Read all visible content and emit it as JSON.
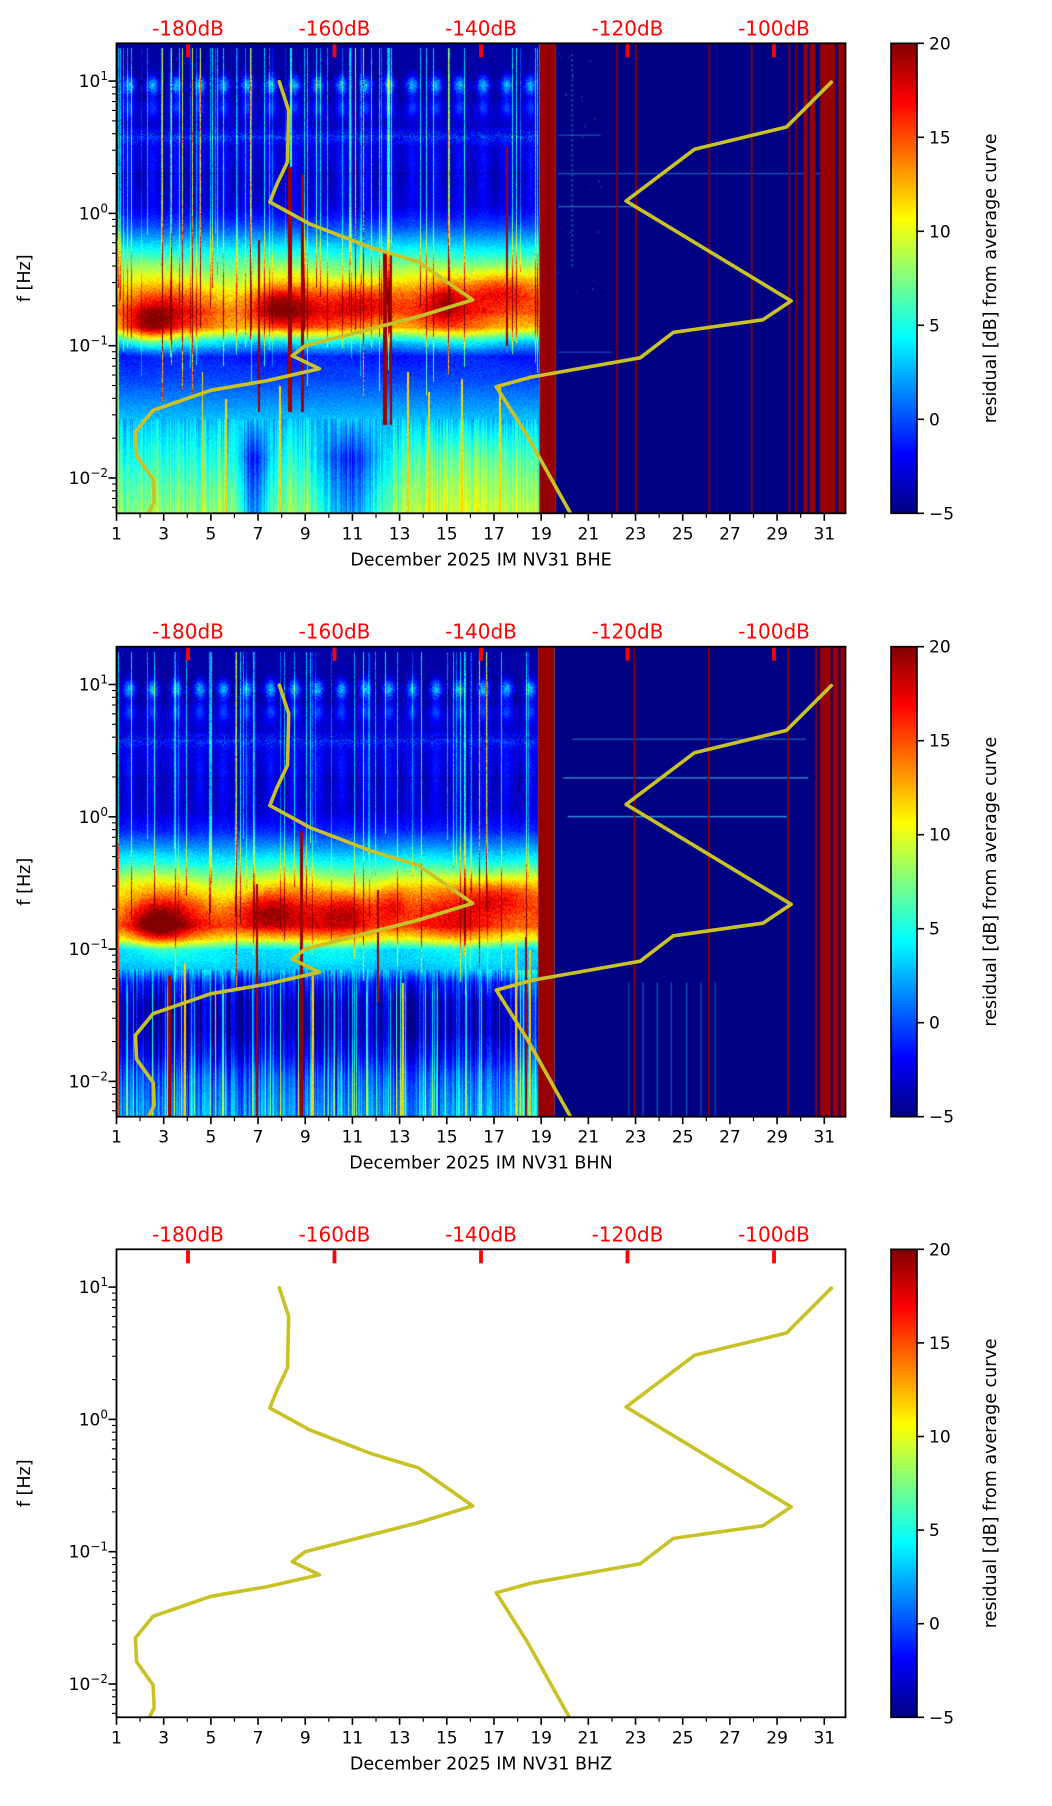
{
  "chart_data": {
    "type": "heatmap",
    "description": "Three stacked day-vs-frequency residual spectrograms for station IM NV31 (channels BHE, BHN, BHZ) with Peterson NLNM/NHNM noise model curves plotted against a red top dB axis",
    "x_axis": {
      "range_days": [
        1,
        31.9
      ],
      "tick_labels": [
        "1",
        "3",
        "5",
        "7",
        "9",
        "11",
        "13",
        "15",
        "17",
        "19",
        "21",
        "23",
        "25",
        "27",
        "29",
        "31"
      ],
      "tick_days": [
        1,
        3,
        5,
        7,
        9,
        11,
        13,
        15,
        17,
        19,
        21,
        23,
        25,
        27,
        29,
        31
      ],
      "minor_days": [
        2,
        4,
        6,
        8,
        10,
        12,
        14,
        16,
        18,
        20,
        22,
        24,
        26,
        28,
        30
      ]
    },
    "y_axis": {
      "label": "f [Hz]",
      "range_hz": [
        0.0054,
        19.3
      ],
      "decade_exponents": [
        1,
        0,
        -1,
        -2
      ],
      "decade_labels": [
        {
          "base": "10",
          "exp": "1"
        },
        {
          "base": "10",
          "exp": "0"
        },
        {
          "base": "10",
          "exp": "−1"
        },
        {
          "base": "10",
          "exp": "−2"
        }
      ]
    },
    "top_axis": {
      "color": "#ff0000",
      "ticks": [
        {
          "label": "-180dB",
          "day": 4.03
        },
        {
          "label": "-160dB",
          "day": 10.24
        },
        {
          "label": "-140dB",
          "day": 16.45
        },
        {
          "label": "-120dB",
          "day": 22.66
        },
        {
          "label": "-100dB",
          "day": 28.87
        }
      ]
    },
    "colorbar": {
      "label": "residual [dB] from average curve",
      "colormap": "jet",
      "range": [
        -5,
        20
      ],
      "tick_values": [
        20,
        15,
        10,
        5,
        0,
        -5
      ],
      "tick_labels": [
        "20",
        "15",
        "10",
        "5",
        "0",
        "−5"
      ]
    },
    "curves": {
      "color": "#c9c226",
      "width": 3.6,
      "nlnm_day_freq": [
        [
          2.3,
          0.0052
        ],
        [
          2.6,
          0.0066
        ],
        [
          2.55,
          0.0098
        ],
        [
          1.85,
          0.0147
        ],
        [
          1.8,
          0.0223
        ],
        [
          2.55,
          0.0325
        ],
        [
          5.0,
          0.046
        ],
        [
          7.4,
          0.0545
        ],
        [
          9.6,
          0.067
        ],
        [
          8.45,
          0.084
        ],
        [
          9.0,
          0.1
        ],
        [
          13.8,
          0.166
        ],
        [
          16.1,
          0.222
        ],
        [
          13.8,
          0.43
        ],
        [
          11.8,
          0.55
        ],
        [
          9.2,
          0.83
        ],
        [
          7.5,
          1.22
        ],
        [
          7.8,
          1.66
        ],
        [
          8.25,
          2.45
        ],
        [
          8.3,
          6.0
        ],
        [
          7.9,
          9.9
        ]
      ],
      "nhnm_day_freq": [
        [
          20.3,
          0.0052
        ],
        [
          18.4,
          0.021
        ],
        [
          17.1,
          0.049
        ],
        [
          18.6,
          0.058
        ],
        [
          23.2,
          0.081
        ],
        [
          24.6,
          0.126
        ],
        [
          28.4,
          0.157
        ],
        [
          29.6,
          0.218
        ],
        [
          22.6,
          1.24
        ],
        [
          25.5,
          3.05
        ],
        [
          29.4,
          4.5
        ],
        [
          31.3,
          9.8
        ]
      ]
    },
    "subplots": [
      {
        "id": "bhe",
        "channel": "BHE",
        "xlabel": "December 2025 IM NV31  BHE",
        "has_spectrogram": true,
        "spectrogram": {
          "seed": 11,
          "low_style": "warm",
          "gap_days": [
            18.9,
            19.6
          ],
          "flat_value": -5,
          "red_line_days": [
            22.2,
            23.0,
            26.1,
            27.9,
            29.5,
            29.8,
            30.15
          ],
          "red_band_days": [
            [
              30.1,
              30.6
            ],
            [
              30.8,
              31.9
            ]
          ],
          "band_slit_days": [
            [
              30.28,
              30.36
            ],
            [
              31.44,
              31.56
            ]
          ],
          "horizontal_lines": [
            {
              "lf": 0.59,
              "d": [
                19.7,
                21.5
              ],
              "a": 0.35
            },
            {
              "lf": 0.3,
              "d": [
                19.7,
                30.8
              ],
              "a": 0.4
            },
            {
              "lf": 0.05,
              "d": [
                19.7,
                22.9
              ],
              "a": 0.45
            },
            {
              "lf": -1.05,
              "d": [
                19.7,
                22.0
              ],
              "a": 0.3
            }
          ],
          "dot_column_day": 20.3,
          "cyan_columns_flat": [],
          "profile": [
            [
              1.29,
              -3.6
            ],
            [
              1.05,
              -3.3
            ],
            [
              0.97,
              -2.0
            ],
            [
              0.88,
              -3.0
            ],
            [
              0.66,
              -2.6
            ],
            [
              0.58,
              0.8
            ],
            [
              0.5,
              -2.4
            ],
            [
              0.25,
              -3.1
            ],
            [
              0.05,
              -2.3
            ],
            [
              -0.1,
              0.5
            ],
            [
              -0.25,
              4.5
            ],
            [
              -0.4,
              8.5
            ],
            [
              -0.52,
              11.5
            ],
            [
              -0.62,
              14.5
            ],
            [
              -0.74,
              16.5
            ],
            [
              -0.86,
              14.5
            ],
            [
              -0.97,
              5.0
            ],
            [
              -1.08,
              -0.5
            ],
            [
              -1.25,
              0.5
            ],
            [
              -1.45,
              2.5
            ],
            [
              -1.65,
              4.5
            ],
            [
              -1.85,
              6.0
            ],
            [
              -2.05,
              7.5
            ],
            [
              -2.27,
              8.8
            ]
          ],
          "cores": [
            [
              2.4,
              -0.85,
              0.75,
              6.5
            ],
            [
              7.8,
              -0.72,
              0.8,
              5.5
            ],
            [
              11.5,
              -0.66,
              1.0,
              5.0
            ],
            [
              17.2,
              -0.58,
              1.1,
              6.0
            ],
            [
              14.9,
              -0.64,
              0.5,
              3.0
            ]
          ],
          "tall_red_streaks": [
            [
              7.0,
              0.1,
              -1.5,
              -0.2
            ],
            [
              8.3,
              0.16,
              -1.5,
              0.35
            ],
            [
              8.85,
              0.12,
              -1.5,
              0.3
            ],
            [
              12.35,
              0.16,
              -1.6,
              -0.3
            ],
            [
              12.6,
              0.1,
              -1.6,
              -0.3
            ],
            [
              17.5,
              0.07,
              -1.0,
              0.5
            ]
          ],
          "yellow_streaks": [
            [
              4.6,
              -2.27,
              -1.2
            ],
            [
              5.6,
              -2.27,
              -1.4
            ],
            [
              7.9,
              -2.27,
              -1.3
            ],
            [
              13.3,
              -2.27,
              -1.2
            ],
            [
              14.2,
              -2.27,
              -1.35
            ],
            [
              15.6,
              -2.27,
              -1.25
            ],
            [
              17.2,
              -2.27,
              -1.3
            ]
          ],
          "low_dips": [
            [
              10.9,
              0.9
            ],
            [
              6.8,
              0.45
            ]
          ]
        }
      },
      {
        "id": "bhn",
        "channel": "BHN",
        "xlabel": "December 2025 IM NV31  BHN",
        "has_spectrogram": true,
        "spectrogram": {
          "seed": 22,
          "low_style": "streaky",
          "gap_days": [
            18.85,
            19.55
          ],
          "flat_value": -5,
          "red_line_days": [
            22.93,
            26.08,
            29.44,
            30.63
          ],
          "red_band_days": [
            [
              30.8,
              31.9
            ]
          ],
          "band_slit_days": [
            [
              31.25,
              31.33
            ],
            [
              31.58,
              31.66
            ]
          ],
          "horizontal_lines": [
            {
              "lf": 0.59,
              "d": [
                20.3,
                30.2
              ],
              "a": 0.4
            },
            {
              "lf": 0.298,
              "d": [
                19.9,
                30.3
              ],
              "a": 0.65
            },
            {
              "lf": 0.005,
              "d": [
                20.1,
                29.4
              ],
              "a": 0.7
            }
          ],
          "dot_column_day": null,
          "cyan_columns_flat": [
            22.7,
            23.3,
            23.9,
            24.5,
            25.15,
            25.75,
            26.35
          ],
          "profile": [
            [
              1.29,
              -3.5
            ],
            [
              1.05,
              -3.2
            ],
            [
              0.97,
              -2.2
            ],
            [
              0.88,
              -3.0
            ],
            [
              0.66,
              -2.4
            ],
            [
              0.58,
              0.5
            ],
            [
              0.5,
              -2.2
            ],
            [
              0.25,
              -3.0
            ],
            [
              0.05,
              -2.6
            ],
            [
              -0.1,
              -0.5
            ],
            [
              -0.22,
              2.5
            ],
            [
              -0.35,
              6.0
            ],
            [
              -0.45,
              9.5
            ],
            [
              -0.55,
              12.5
            ],
            [
              -0.68,
              15.5
            ],
            [
              -0.82,
              17.0
            ],
            [
              -0.92,
              12.0
            ],
            [
              -1.0,
              5.0
            ],
            [
              -1.08,
              4.5
            ],
            [
              -1.16,
              3.5
            ],
            [
              -1.25,
              -0.5
            ],
            [
              -1.4,
              -2.6
            ],
            [
              -1.62,
              -2.8
            ],
            [
              -1.8,
              -1.2
            ],
            [
              -1.95,
              1.0
            ],
            [
              -2.1,
              2.0
            ],
            [
              -2.27,
              2.8
            ]
          ],
          "cores": [
            [
              2.7,
              -0.82,
              0.8,
              6.5
            ],
            [
              7.2,
              -0.72,
              0.9,
              5.5
            ],
            [
              10.9,
              -0.7,
              0.8,
              4.5
            ],
            [
              12.6,
              -0.66,
              0.5,
              4.0
            ],
            [
              17.1,
              -0.6,
              1.2,
              6.0
            ]
          ],
          "tall_red_streaks": [
            [
              3.2,
              0.14,
              -2.27,
              -1.2
            ],
            [
              6.9,
              0.1,
              -2.27,
              -0.5
            ],
            [
              8.8,
              0.14,
              -2.27,
              -0.1
            ],
            [
              12.05,
              0.07,
              -1.4,
              -0.55
            ],
            [
              18.3,
              0.08,
              -2.27,
              -0.9
            ]
          ],
          "yellow_streaks": [
            [
              3.85,
              -2.27,
              -1.1
            ],
            [
              5.15,
              -2.27,
              -1.3
            ],
            [
              9.3,
              -2.27,
              -1.2
            ],
            [
              13.1,
              -2.27,
              -1.25
            ],
            [
              17.9,
              -2.27,
              -0.95
            ],
            [
              18.5,
              -2.27,
              -1.0
            ]
          ],
          "low_dips": []
        }
      },
      {
        "id": "bhz",
        "channel": "BHZ",
        "xlabel": "December 2025 IM NV31  BHZ",
        "has_spectrogram": false,
        "spectrogram": null
      }
    ]
  }
}
